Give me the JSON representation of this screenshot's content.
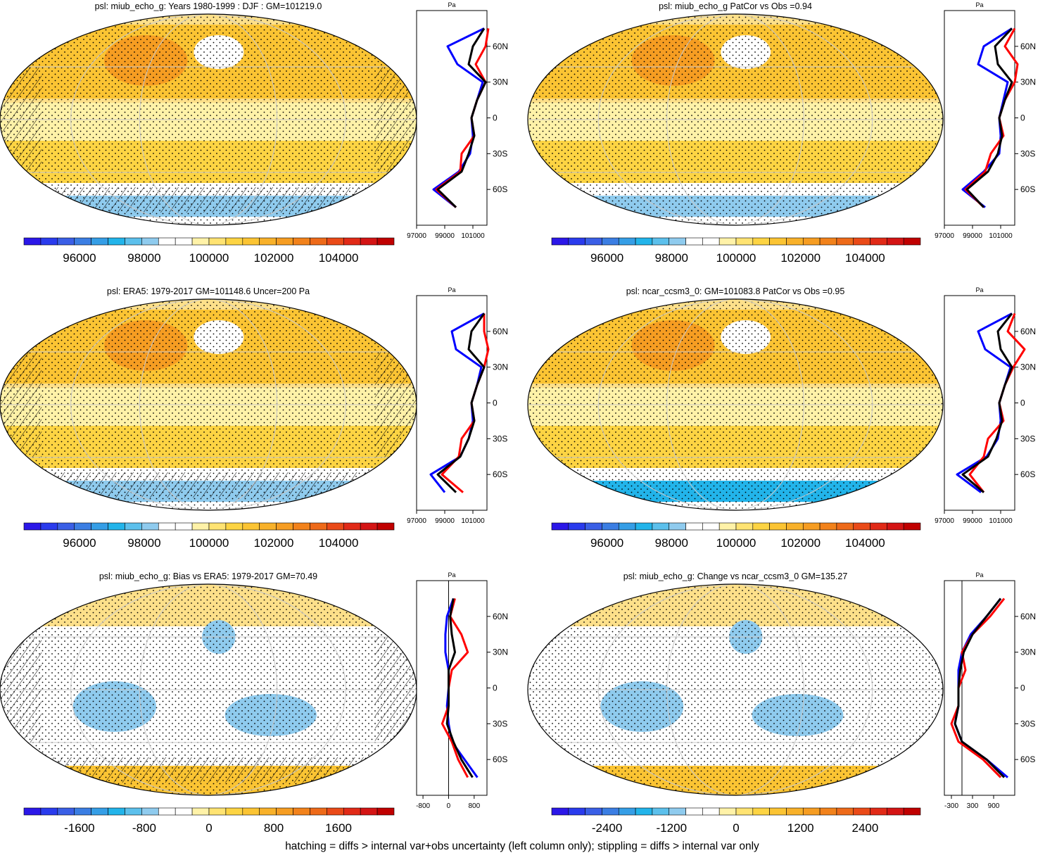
{
  "footer_note": "hatching = diffs > internal var+obs uncertainty (left column only); stippling = diffs > internal var only",
  "lat_ticks": [
    "60N",
    "30N",
    "0",
    "30S",
    "60S"
  ],
  "unit_label": "Pa",
  "colors": {
    "scale": [
      "#2b17e8",
      "#2a3bed",
      "#3a5fe6",
      "#3b7ee3",
      "#359ee6",
      "#22b4ea",
      "#5cc0ec",
      "#8fcbee",
      "#ffffff",
      "#ffffff",
      "#fff2a8",
      "#ffe372",
      "#fdd443",
      "#fbc433",
      "#f8b12a",
      "#f69d22",
      "#f2821b",
      "#ee6a19",
      "#ea4a18",
      "#e12a17",
      "#d41414",
      "#c00000"
    ],
    "model": "#0000ff",
    "reference": "#ff0000",
    "obs": "#000000"
  },
  "chart_data": [
    {
      "type": "heatmap",
      "title": "psl: miub_echo_g: Years 1980-1999 : DJF : GM=101219.0",
      "colorbar_labels": [
        "96000",
        "98000",
        "100000",
        "102000",
        "104000"
      ],
      "zonal_profile": {
        "type": "line",
        "unit": "Pa",
        "xlim": [
          97000,
          102000
        ],
        "x_tick_labels": [
          "97000",
          "99000",
          "101000"
        ],
        "lat": [
          75,
          60,
          45,
          30,
          15,
          0,
          -15,
          -30,
          -45,
          -60,
          -75
        ],
        "series": [
          [
            101800,
            99200,
            99900,
            101700,
            101300,
            100900,
            101000,
            100800,
            100000,
            98200,
            99800
          ],
          [
            102100,
            101900,
            101200,
            101900,
            101300,
            100900,
            101100,
            100200,
            100100,
            98400,
            99800
          ],
          [
            101800,
            101000,
            100700,
            101900,
            101300,
            100900,
            101100,
            100700,
            100200,
            98500,
            99800
          ]
        ]
      }
    },
    {
      "type": "heatmap",
      "title": "psl: miub_echo_g PatCor vs Obs =0.94",
      "colorbar_labels": [
        "96000",
        "98000",
        "100000",
        "102000",
        "104000"
      ],
      "zonal_profile": {
        "type": "line",
        "unit": "Pa",
        "xlim": [
          97000,
          102000
        ],
        "x_tick_labels": [
          "97000",
          "99000",
          "101000"
        ],
        "lat": [
          75,
          60,
          45,
          30,
          15,
          0,
          -15,
          -30,
          -45,
          -60,
          -75
        ],
        "series": [
          [
            101800,
            99800,
            99400,
            101500,
            101200,
            100900,
            101000,
            100900,
            99800,
            98300,
            99900
          ],
          [
            102000,
            101300,
            102200,
            102000,
            101300,
            100900,
            101200,
            100300,
            99900,
            98500,
            99800
          ],
          [
            101800,
            100600,
            100800,
            101800,
            101300,
            100900,
            101100,
            100800,
            100100,
            98600,
            99800
          ]
        ]
      }
    },
    {
      "type": "heatmap",
      "title": "psl: ERA5: 1979-2017 GM=101148.6 Uncer=200 Pa",
      "colorbar_labels": [
        "96000",
        "98000",
        "100000",
        "102000",
        "104000"
      ],
      "zonal_profile": {
        "type": "line",
        "unit": "Pa",
        "xlim": [
          97000,
          102000
        ],
        "x_tick_labels": [
          "97000",
          "99000",
          "101000"
        ],
        "lat": [
          75,
          60,
          45,
          30,
          15,
          0,
          -15,
          -30,
          -45,
          -60,
          -75
        ],
        "series": [
          [
            101800,
            99500,
            99800,
            101600,
            101300,
            100900,
            101000,
            100700,
            100100,
            98000,
            99000
          ],
          [
            101800,
            101800,
            102100,
            101800,
            101300,
            100900,
            101100,
            100200,
            100000,
            98800,
            100300
          ],
          [
            101800,
            100900,
            100700,
            101800,
            101300,
            100900,
            101100,
            100700,
            100100,
            98500,
            99800
          ]
        ]
      }
    },
    {
      "type": "heatmap",
      "title": "psl: ncar_ccsm3_0: GM=101083.8 PatCor vs Obs =0.95",
      "colorbar_labels": [
        "96000",
        "98000",
        "100000",
        "102000",
        "104000"
      ],
      "zonal_profile": {
        "type": "line",
        "unit": "Pa",
        "xlim": [
          97000,
          102000
        ],
        "x_tick_labels": [
          "97000",
          "99000",
          "101000"
        ],
        "lat": [
          75,
          60,
          45,
          30,
          15,
          0,
          -15,
          -30,
          -45,
          -60,
          -75
        ],
        "series": [
          [
            101800,
            99400,
            99900,
            101700,
            101300,
            100900,
            101000,
            100800,
            100000,
            97900,
            99600
          ],
          [
            102000,
            101500,
            102700,
            101900,
            101300,
            100900,
            101200,
            100100,
            99800,
            98800,
            99800
          ],
          [
            101800,
            100800,
            101000,
            101800,
            101300,
            100900,
            101100,
            100700,
            100100,
            98300,
            99800
          ]
        ]
      }
    },
    {
      "type": "heatmap",
      "title": "psl: miub_echo_g: Bias vs ERA5: 1979-2017 GM=70.49",
      "colorbar_labels": [
        "-1600",
        "-800",
        "0",
        "800",
        "1600"
      ],
      "zonal_profile": {
        "type": "line",
        "unit": "Pa",
        "xlim": [
          -1000,
          1200
        ],
        "x_tick_labels": [
          "-800",
          "0",
          "800"
        ],
        "lat": [
          75,
          60,
          45,
          30,
          15,
          0,
          -15,
          -30,
          -45,
          -60,
          -75
        ],
        "series": [
          [
            150,
            -50,
            -100,
            -100,
            0,
            0,
            -50,
            0,
            100,
            500,
            900
          ],
          [
            200,
            50,
            400,
            600,
            100,
            0,
            0,
            -200,
            100,
            300,
            600
          ],
          [
            150,
            50,
            100,
            200,
            0,
            0,
            0,
            -50,
            150,
            400,
            750
          ]
        ]
      }
    },
    {
      "type": "heatmap",
      "title": "psl: miub_echo_g: Change vs ncar_ccsm3_0 GM=135.27",
      "colorbar_labels": [
        "-2400",
        "-1200",
        "0",
        "1200",
        "2400"
      ],
      "zonal_profile": {
        "type": "line",
        "unit": "Pa",
        "xlim": [
          -500,
          1500
        ],
        "x_tick_labels": [
          "-300",
          "300",
          "900"
        ],
        "lat": [
          75,
          60,
          45,
          30,
          15,
          0,
          -15,
          -30,
          -45,
          -60,
          -75
        ],
        "series": [
          [
            1100,
            700,
            250,
            0,
            -100,
            -100,
            -100,
            -200,
            0,
            700,
            1300
          ],
          [
            1200,
            800,
            300,
            0,
            100,
            -100,
            -100,
            -300,
            -100,
            600,
            1100
          ],
          [
            1100,
            700,
            300,
            50,
            -50,
            -100,
            -100,
            -200,
            0,
            700,
            1200
          ]
        ]
      }
    }
  ]
}
